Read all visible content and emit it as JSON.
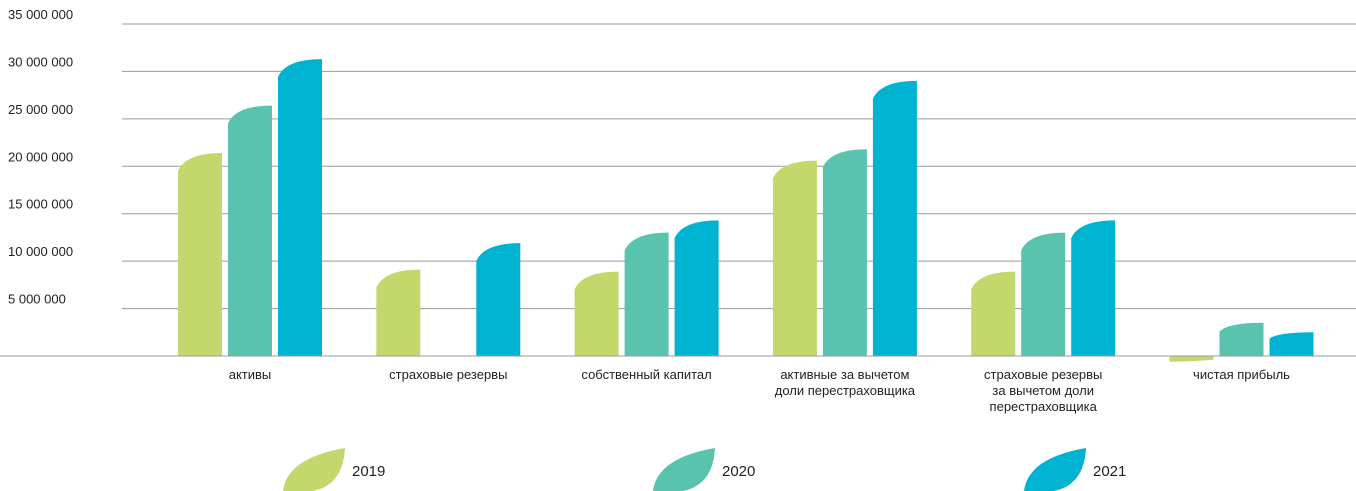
{
  "chart_data": {
    "type": "bar",
    "title": "",
    "xlabel": "",
    "ylabel": "",
    "ylim": [
      0,
      35000000
    ],
    "yticks": [
      {
        "value": 5000000,
        "label": "5 000 000"
      },
      {
        "value": 10000000,
        "label": "10 000 000"
      },
      {
        "value": 15000000,
        "label": "15 000 000"
      },
      {
        "value": 20000000,
        "label": "20 000 000"
      },
      {
        "value": 25000000,
        "label": "25 000 000"
      },
      {
        "value": 30000000,
        "label": "30 000 000"
      },
      {
        "value": 35000000,
        "label": "35 000 000"
      }
    ],
    "categories": [
      [
        "активы"
      ],
      [
        "страховые резервы"
      ],
      [
        "собственный капитал"
      ],
      [
        "активные за вычетом",
        "доли перестраховщика"
      ],
      [
        "страховые резервы",
        "за вычетом доли",
        "перестраховщика"
      ],
      [
        "чистая прибыль"
      ]
    ],
    "series": [
      {
        "name": "2019",
        "color": "#c2d86d",
        "values": [
          21400000,
          9100000,
          8900000,
          20600000,
          8900000,
          -600000
        ]
      },
      {
        "name": "2020",
        "color": "#59c3ad",
        "values": [
          26400000,
          0,
          13000000,
          21800000,
          13000000,
          3500000
        ]
      },
      {
        "name": "2021",
        "color": "#00b3d1",
        "values": [
          31300000,
          11900000,
          14300000,
          29000000,
          14300000,
          2500000
        ]
      }
    ],
    "grid": true,
    "legend_position": "bottom"
  }
}
